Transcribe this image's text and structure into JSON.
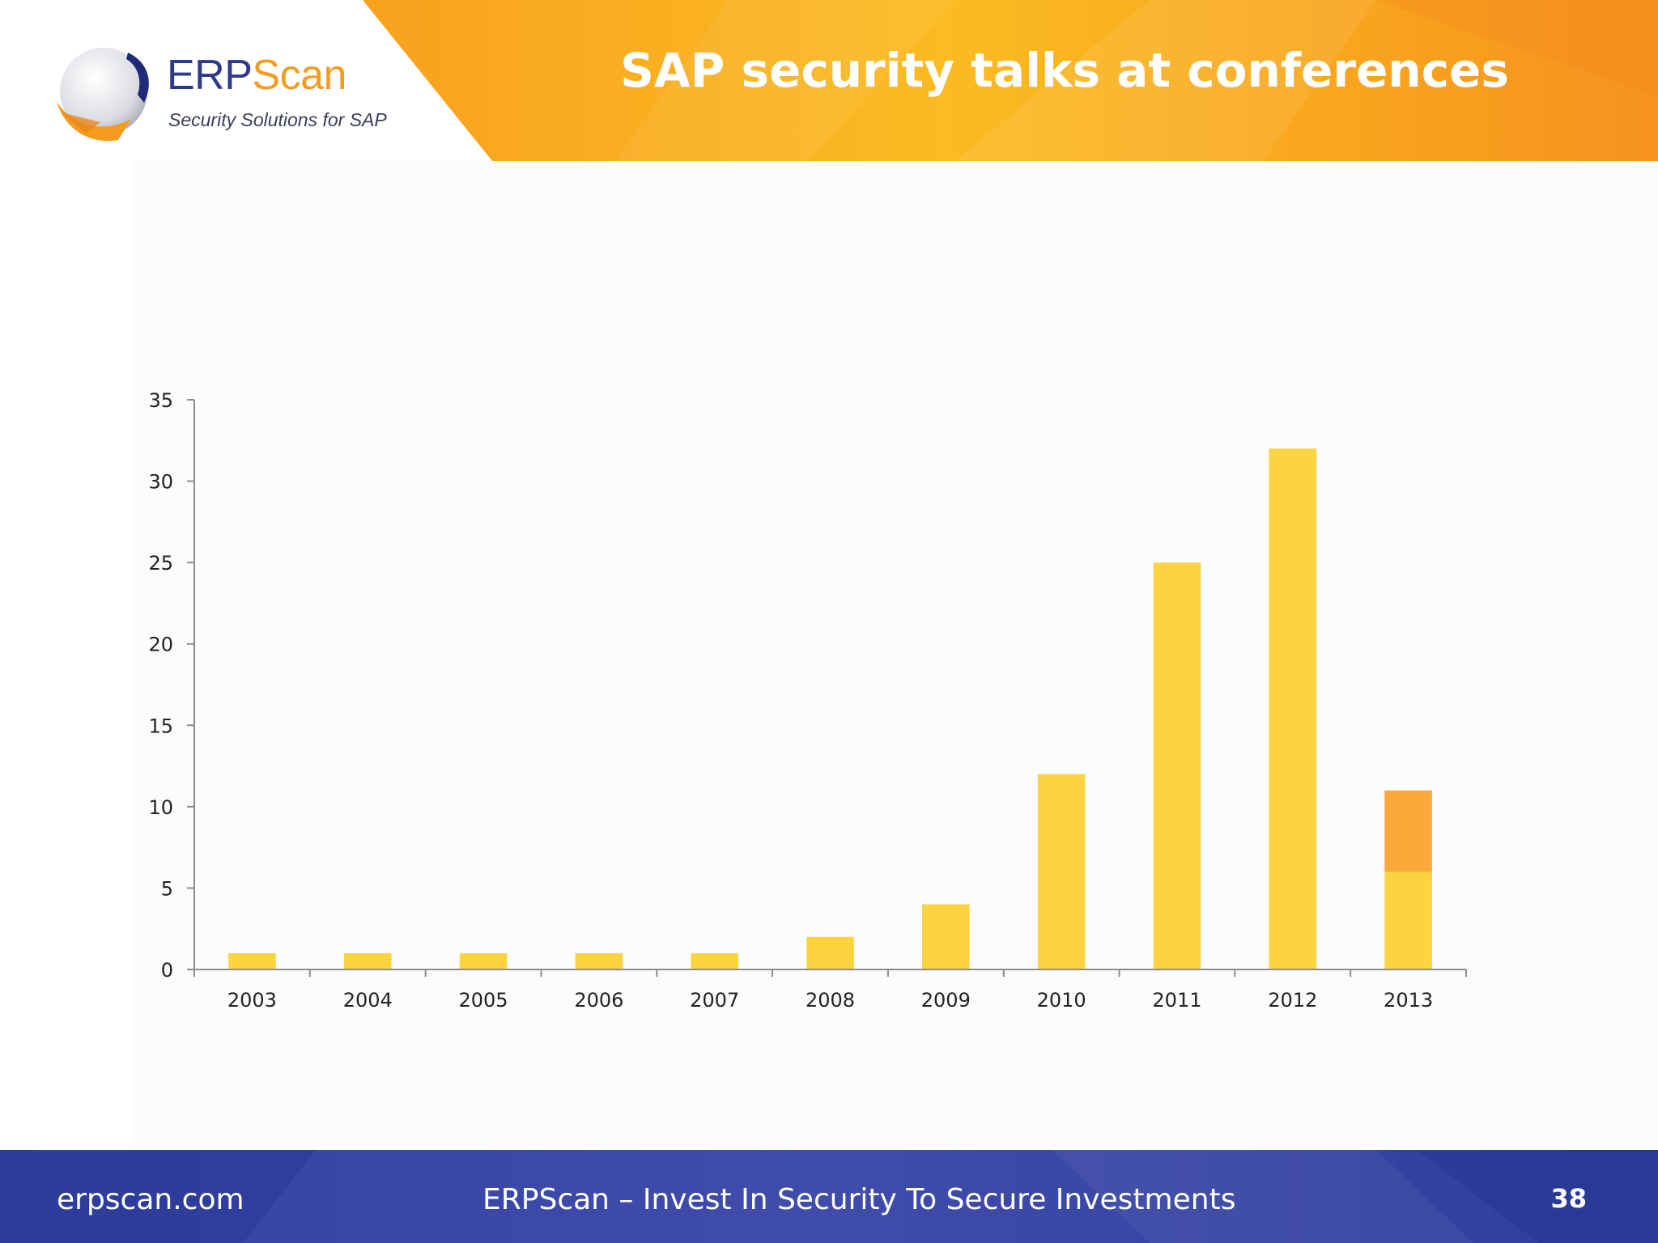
{
  "logo": {
    "name_part1": "ERP",
    "name_part2": "Scan",
    "tagline": "Security Solutions for SAP"
  },
  "header": {
    "title": "SAP security talks at conferences"
  },
  "colors": {
    "accent_orange": "#f7a51d",
    "brand_blue": "#2d3a8c",
    "bar_yellow": "#fdd33f",
    "bar_orange": "#fca83a"
  },
  "chart_data": {
    "type": "bar",
    "stacked": true,
    "title": "",
    "xlabel": "",
    "ylabel": "",
    "categories": [
      "2003",
      "2004",
      "2005",
      "2006",
      "2007",
      "2008",
      "2009",
      "2010",
      "2011",
      "2012",
      "2013"
    ],
    "series": [
      {
        "color": "#fdd33f",
        "values": [
          1,
          1,
          1,
          1,
          1,
          2,
          4,
          12,
          25,
          32,
          6
        ]
      },
      {
        "color": "#fca83a",
        "values": [
          0,
          0,
          0,
          0,
          0,
          0,
          0,
          0,
          0,
          0,
          5
        ]
      }
    ],
    "ylim": [
      0,
      35
    ],
    "yticks": [
      0,
      5,
      10,
      15,
      20,
      25,
      30,
      35
    ],
    "grid": false,
    "legend": "none"
  },
  "footer": {
    "site": "erpscan.com",
    "slogan": "ERPScan – Invest In Security To Secure Investments",
    "page_number": "38"
  }
}
